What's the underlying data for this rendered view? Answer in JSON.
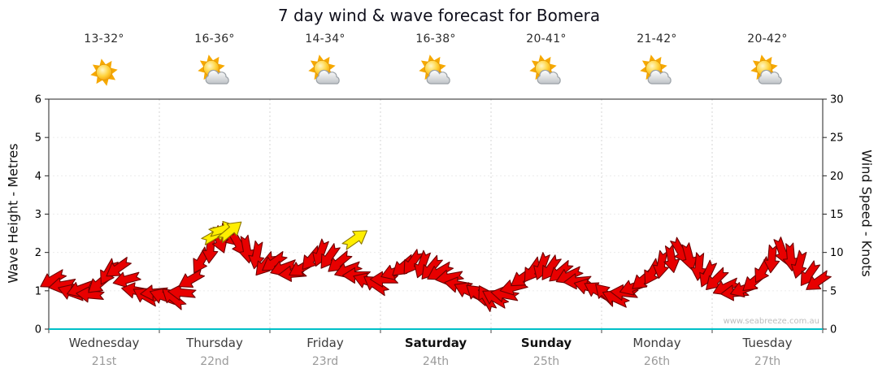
{
  "title": "7 day wind & wave forecast for Bomera",
  "watermark": "www.seabreeze.com.au",
  "header": {
    "days": [
      {
        "name": "Wednesday",
        "date": "21st",
        "temp": "13-32°",
        "icon": "sunny",
        "weekend": false
      },
      {
        "name": "Thursday",
        "date": "22nd",
        "temp": "16-36°",
        "icon": "partly-cloudy",
        "weekend": false
      },
      {
        "name": "Friday",
        "date": "23rd",
        "temp": "14-34°",
        "icon": "partly-cloudy",
        "weekend": false
      },
      {
        "name": "Saturday",
        "date": "24th",
        "temp": "16-38°",
        "icon": "partly-cloudy",
        "weekend": true
      },
      {
        "name": "Sunday",
        "date": "25th",
        "temp": "20-41°",
        "icon": "partly-cloudy",
        "weekend": true
      },
      {
        "name": "Monday",
        "date": "26th",
        "temp": "21-42°",
        "icon": "partly-cloudy",
        "weekend": false
      },
      {
        "name": "Tuesday",
        "date": "27th",
        "temp": "20-42°",
        "icon": "partly-cloudy",
        "weekend": false
      }
    ]
  },
  "left_axis": {
    "label": "Wave Height - Metres",
    "min": 0,
    "max": 6,
    "ticks": [
      0,
      1,
      2,
      3,
      4,
      5,
      6
    ]
  },
  "right_axis": {
    "label": "Wind Speed - Knots",
    "min": 0,
    "max": 30,
    "ticks": [
      0,
      5,
      10,
      15,
      20,
      25,
      30
    ]
  },
  "chart_data": {
    "type": "scatter",
    "title": "7 day wind & wave forecast for Bomera",
    "x_categories": [
      "Wednesday 21st",
      "Thursday 22nd",
      "Friday 23rd",
      "Saturday 24th",
      "Sunday 25th",
      "Monday 26th",
      "Tuesday 27th"
    ],
    "ylabel_left": "Wave Height - Metres",
    "ylabel_right": "Wind Speed - Knots",
    "ylim_left": [
      0,
      6
    ],
    "ylim_right": [
      0,
      30
    ],
    "grid": true,
    "point_format": "[t_days_from_wed_start, wave_height_metres, arrow_direction_deg]",
    "series": [
      {
        "name": "wind-arrows",
        "color": "#e80000",
        "stroke": "#6e0000",
        "points": [
          [
            0.04,
            1.3,
            150
          ],
          [
            0.13,
            1.15,
            170
          ],
          [
            0.21,
            0.95,
            200
          ],
          [
            0.29,
            1.05,
            160
          ],
          [
            0.38,
            0.9,
            185
          ],
          [
            0.46,
            1.2,
            140
          ],
          [
            0.54,
            1.5,
            120
          ],
          [
            0.63,
            1.6,
            145
          ],
          [
            0.71,
            1.3,
            165
          ],
          [
            0.79,
            1.0,
            190
          ],
          [
            0.88,
            0.85,
            210
          ],
          [
            0.96,
            0.95,
            175
          ],
          [
            1.04,
            0.85,
            200
          ],
          [
            1.13,
            0.8,
            220
          ],
          [
            1.21,
            0.95,
            185
          ],
          [
            1.29,
            1.3,
            150
          ],
          [
            1.38,
            1.8,
            120
          ],
          [
            1.46,
            2.1,
            95
          ],
          [
            1.54,
            2.35,
            70
          ],
          [
            1.63,
            2.45,
            45
          ],
          [
            1.71,
            2.25,
            60
          ],
          [
            1.79,
            2.1,
            80
          ],
          [
            1.88,
            1.95,
            100
          ],
          [
            1.96,
            1.7,
            130
          ],
          [
            2.04,
            1.75,
            145
          ],
          [
            2.13,
            1.6,
            160
          ],
          [
            2.21,
            1.45,
            175
          ],
          [
            2.29,
            1.6,
            150
          ],
          [
            2.38,
            1.85,
            130
          ],
          [
            2.46,
            2.0,
            110
          ],
          [
            2.54,
            1.9,
            125
          ],
          [
            2.63,
            1.75,
            140
          ],
          [
            2.71,
            1.55,
            160
          ],
          [
            2.79,
            1.4,
            180
          ],
          [
            2.88,
            1.25,
            200
          ],
          [
            2.96,
            1.15,
            215
          ],
          [
            3.04,
            1.3,
            180
          ],
          [
            3.13,
            1.5,
            160
          ],
          [
            3.21,
            1.65,
            140
          ],
          [
            3.29,
            1.75,
            125
          ],
          [
            3.38,
            1.7,
            110
          ],
          [
            3.46,
            1.6,
            130
          ],
          [
            3.54,
            1.5,
            150
          ],
          [
            3.63,
            1.35,
            170
          ],
          [
            3.71,
            1.15,
            190
          ],
          [
            3.79,
            1.0,
            205
          ],
          [
            3.88,
            0.9,
            220
          ],
          [
            3.96,
            0.8,
            240
          ],
          [
            4.04,
            0.8,
            210
          ],
          [
            4.13,
            0.9,
            190
          ],
          [
            4.21,
            1.1,
            165
          ],
          [
            4.29,
            1.35,
            145
          ],
          [
            4.38,
            1.55,
            125
          ],
          [
            4.46,
            1.65,
            110
          ],
          [
            4.54,
            1.6,
            125
          ],
          [
            4.63,
            1.5,
            140
          ],
          [
            4.71,
            1.4,
            155
          ],
          [
            4.79,
            1.25,
            175
          ],
          [
            4.88,
            1.1,
            195
          ],
          [
            4.96,
            1.0,
            210
          ],
          [
            5.04,
            0.9,
            225
          ],
          [
            5.13,
            0.8,
            205
          ],
          [
            5.21,
            0.95,
            185
          ],
          [
            5.29,
            1.1,
            160
          ],
          [
            5.38,
            1.3,
            140
          ],
          [
            5.46,
            1.5,
            120
          ],
          [
            5.54,
            1.7,
            100
          ],
          [
            5.63,
            1.85,
            80
          ],
          [
            5.71,
            2.05,
            60
          ],
          [
            5.79,
            1.9,
            75
          ],
          [
            5.88,
            1.65,
            95
          ],
          [
            5.96,
            1.45,
            115
          ],
          [
            6.04,
            1.3,
            135
          ],
          [
            6.13,
            1.1,
            155
          ],
          [
            6.21,
            0.95,
            175
          ],
          [
            6.29,
            1.05,
            160
          ],
          [
            6.38,
            1.25,
            140
          ],
          [
            6.46,
            1.55,
            120
          ],
          [
            6.54,
            1.85,
            95
          ],
          [
            6.63,
            2.05,
            70
          ],
          [
            6.71,
            1.9,
            85
          ],
          [
            6.79,
            1.7,
            105
          ],
          [
            6.88,
            1.45,
            125
          ],
          [
            6.96,
            1.25,
            145
          ]
        ]
      },
      {
        "name": "gust-arrows",
        "color": "#ffee00",
        "stroke": "#8a7500",
        "points": [
          [
            1.5,
            2.45,
            -30
          ],
          [
            1.57,
            2.6,
            -15
          ],
          [
            1.64,
            2.55,
            -40
          ],
          [
            2.77,
            2.35,
            -35
          ]
        ]
      }
    ]
  }
}
